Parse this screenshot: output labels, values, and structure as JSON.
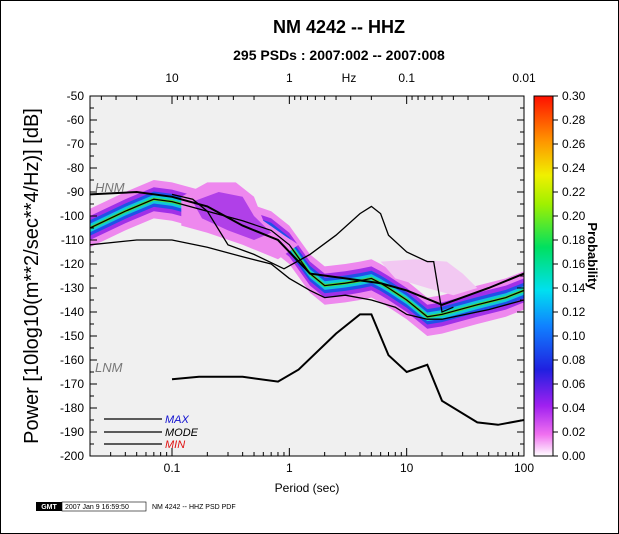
{
  "chart_data": {
    "type": "heatmap",
    "title": "NM 4242 -- HHZ",
    "subtitle": "295 PSDs : 2007:002 -- 2007:008",
    "xlabel": "Period (sec)",
    "ylabel": "Power [10log10(m**2/sec**4/Hz)] [dB]",
    "top_axis_label": "Hz",
    "x_scale": "log",
    "xlim": [
      0.02,
      100
    ],
    "ylim": [
      -200,
      -50
    ],
    "x_ticks": [
      "0.1",
      "1",
      "10",
      "100"
    ],
    "top_ticks": [
      "10",
      "1",
      "0.1",
      "0.01"
    ],
    "y_ticks": [
      "-50",
      "-60",
      "-70",
      "-80",
      "-90",
      "-100",
      "-110",
      "-120",
      "-130",
      "-140",
      "-150",
      "-160",
      "-170",
      "-180",
      "-190",
      "-200"
    ],
    "colorbar": {
      "label": "Probability",
      "range": [
        0,
        0.3
      ],
      "ticks": [
        "0.30",
        "0.28",
        "0.26",
        "0.24",
        "0.22",
        "0.20",
        "0.18",
        "0.16",
        "0.14",
        "0.12",
        "0.10",
        "0.08",
        "0.06",
        "0.04",
        "0.02",
        "0.00"
      ]
    },
    "reference_models": [
      {
        "label": "HNM",
        "x": [
          0.02,
          0.05,
          0.1,
          0.2,
          0.4,
          0.8,
          1.5,
          3,
          6,
          10,
          20,
          50,
          100
        ],
        "y": [
          -91,
          -90,
          -92,
          -96,
          -104,
          -110,
          -124,
          -126,
          -128,
          -131,
          -137,
          -130,
          -124
        ]
      },
      {
        "label": "LNM",
        "x": [
          0.1,
          0.17,
          0.4,
          0.8,
          1.2,
          2.5,
          4,
          5,
          7,
          10,
          15,
          20,
          40,
          60,
          100
        ],
        "y": [
          -168,
          -167,
          -167,
          -169,
          -164,
          -149,
          -141,
          -141,
          -158,
          -165,
          -162,
          -177,
          -186,
          -187,
          -185
        ]
      }
    ],
    "series": [
      {
        "name": "MAX",
        "color": "#000000",
        "x": [
          0.1,
          0.15,
          0.2,
          0.3,
          0.5,
          0.9,
          1.5,
          2.5,
          4,
          5,
          6,
          7,
          10,
          15,
          17,
          20,
          25
        ],
        "y": [
          -91,
          -93,
          -98,
          -112,
          -116,
          -122,
          -116,
          -108,
          -99,
          -96,
          -99,
          -108,
          -115,
          -119,
          -119,
          -140,
          -138
        ]
      },
      {
        "name": "MODE",
        "color": "#000000",
        "x": [
          0.02,
          0.04,
          0.07,
          0.1,
          0.2,
          0.4,
          0.7,
          1,
          1.5,
          2,
          3,
          4,
          5,
          6,
          7,
          10,
          15,
          20,
          40,
          70,
          100
        ],
        "y": [
          -105,
          -98,
          -93,
          -94,
          -98,
          -102,
          -106,
          -112,
          -124,
          -129,
          -128,
          -127,
          -126,
          -128,
          -130,
          -135,
          -142,
          -141,
          -137,
          -134,
          -131
        ]
      },
      {
        "name": "MIN",
        "color": "#000000",
        "x": [
          0.02,
          0.05,
          0.1,
          0.2,
          0.4,
          0.7,
          1,
          1.5,
          2,
          3,
          5,
          8,
          10,
          15,
          20,
          50,
          100
        ],
        "y": [
          -112,
          -110,
          -110,
          -113,
          -117,
          -120,
          -126,
          -131,
          -134,
          -133,
          -135,
          -138,
          -141,
          -143,
          -143,
          -139,
          -135
        ]
      }
    ],
    "legend": [
      {
        "name": "MAX",
        "color": "#1010d0"
      },
      {
        "name": "MODE",
        "color": "#000000"
      },
      {
        "name": "MIN",
        "color": "#e01010"
      }
    ],
    "legend_position": "bottom-left",
    "grid": false
  },
  "footer": {
    "logo": "GMT",
    "timestamp": "2007 Jan  9 16:59:50",
    "caption": "NM 4242 -- HHZ PSD PDF"
  }
}
